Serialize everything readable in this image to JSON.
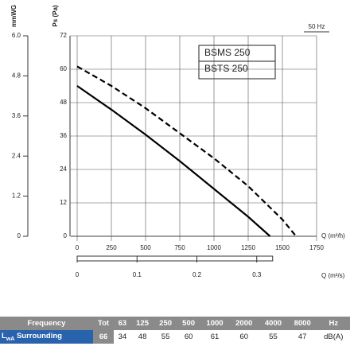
{
  "chart_data": {
    "type": "line",
    "ylabel": "mmWG",
    "y2label": "Ps (Pa)",
    "xlabel": "Q (m³/h)",
    "x2label": "Q (m³/s)",
    "annotation": "50 Hz",
    "ylim": [
      0,
      6
    ],
    "yticks": [
      0,
      1.2,
      2.4,
      3.6,
      4.8,
      {
        "value": 6,
        "label": "6.0"
      }
    ],
    "y2lim": [
      0,
      72
    ],
    "y2ticks": [
      0,
      12,
      24,
      36,
      48,
      60,
      72
    ],
    "xlim": [
      0,
      1750
    ],
    "xticks": [
      0,
      250,
      500,
      750,
      1000,
      1250,
      1500,
      1750
    ],
    "x2lim": [
      0,
      0.4
    ],
    "x2ticks": [
      0,
      0.1,
      0.2,
      0.3
    ],
    "grid": true,
    "series": [
      {
        "name": "BSMS 250",
        "color": "#000000",
        "dashed": false,
        "axis": "y2",
        "x": [
          0,
          250,
          500,
          750,
          1000,
          1250,
          1410
        ],
        "values": [
          54,
          45.5,
          36.5,
          27,
          17,
          7,
          0
        ]
      },
      {
        "name": "BSTS 250",
        "color": "#000000",
        "dashed": true,
        "axis": "y2",
        "x": [
          0,
          250,
          500,
          750,
          1000,
          1250,
          1500,
          1600
        ],
        "values": [
          61,
          54,
          46,
          37,
          28,
          18,
          6,
          0
        ]
      }
    ]
  },
  "table": {
    "header": [
      "Frequency",
      "Tot",
      "63",
      "125",
      "250",
      "500",
      "1000",
      "2000",
      "4000",
      "8000",
      "Hz"
    ],
    "row": {
      "symbol": "L",
      "sub": "wA",
      "text": "Surrounding",
      "cells": [
        "66",
        "34",
        "48",
        "55",
        "60",
        "61",
        "60",
        "55",
        "47",
        "dB(A)"
      ]
    }
  }
}
